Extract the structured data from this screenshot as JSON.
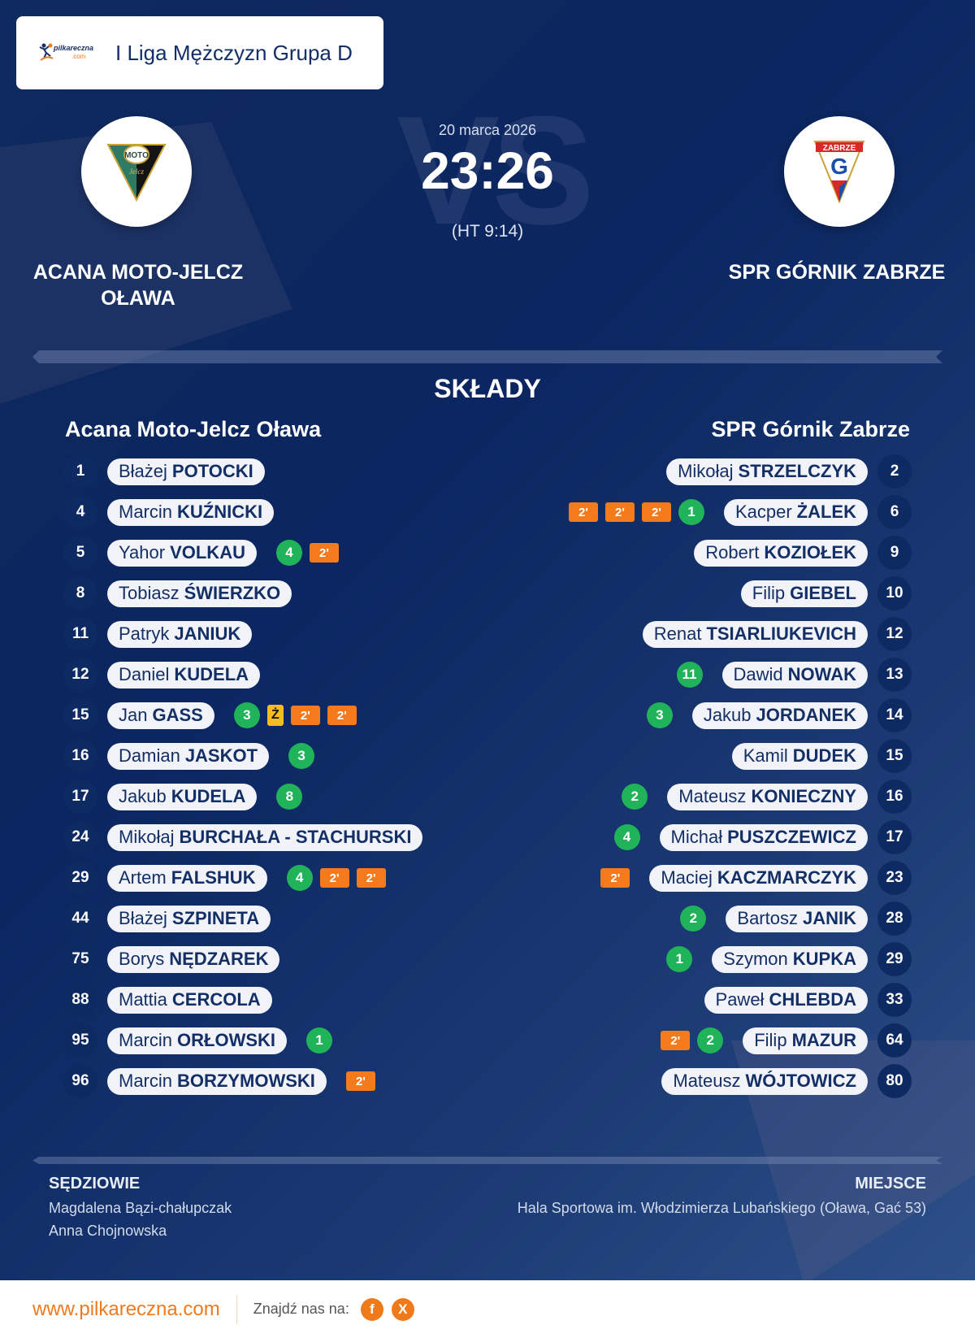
{
  "header": {
    "brand_name": "pilkareczna",
    "brand_tld": ".com",
    "league_title": "I Liga Mężczyzn Grupa D"
  },
  "match": {
    "date": "20 marca 2026",
    "score": "23:26",
    "halftime": "(HT 9:14)",
    "vs_watermark": "VS",
    "home_team_name": "ACANA MOTO-JELCZ OŁAWA",
    "away_team_name": "SPR GÓRNIK ZABRZE",
    "home_logo_text": "MOTO",
    "away_logo_text": "ZABRZE"
  },
  "lineups": {
    "section_title": "SKŁADY",
    "home": {
      "title": "Acana Moto-Jelcz Oława",
      "players": [
        {
          "number": "1",
          "first": "Błażej",
          "last": "POTOCKI",
          "goals": null,
          "yellow": false,
          "suspensions": 0
        },
        {
          "number": "4",
          "first": "Marcin",
          "last": "KUŹNICKI",
          "goals": null,
          "yellow": false,
          "suspensions": 0
        },
        {
          "number": "5",
          "first": "Yahor",
          "last": "VOLKAU",
          "goals": "4",
          "yellow": false,
          "suspensions": 1
        },
        {
          "number": "8",
          "first": "Tobiasz",
          "last": "ŚWIERZKO",
          "goals": null,
          "yellow": false,
          "suspensions": 0
        },
        {
          "number": "11",
          "first": "Patryk",
          "last": "JANIUK",
          "goals": null,
          "yellow": false,
          "suspensions": 0
        },
        {
          "number": "12",
          "first": "Daniel",
          "last": "KUDELA",
          "goals": null,
          "yellow": false,
          "suspensions": 0
        },
        {
          "number": "15",
          "first": "Jan",
          "last": "GASS",
          "goals": "3",
          "yellow": true,
          "suspensions": 2
        },
        {
          "number": "16",
          "first": "Damian",
          "last": "JASKOT",
          "goals": "3",
          "yellow": false,
          "suspensions": 0
        },
        {
          "number": "17",
          "first": "Jakub",
          "last": "KUDELA",
          "goals": "8",
          "yellow": false,
          "suspensions": 0
        },
        {
          "number": "24",
          "first": "Mikołaj",
          "last": "BURCHAŁA - STACHURSKI",
          "goals": null,
          "yellow": false,
          "suspensions": 0
        },
        {
          "number": "29",
          "first": "Artem",
          "last": "FALSHUK",
          "goals": "4",
          "yellow": false,
          "suspensions": 2
        },
        {
          "number": "44",
          "first": "Błażej",
          "last": "SZPINETA",
          "goals": null,
          "yellow": false,
          "suspensions": 0
        },
        {
          "number": "75",
          "first": "Borys",
          "last": "NĘDZAREK",
          "goals": null,
          "yellow": false,
          "suspensions": 0
        },
        {
          "number": "88",
          "first": "Mattia",
          "last": "CERCOLA",
          "goals": null,
          "yellow": false,
          "suspensions": 0
        },
        {
          "number": "95",
          "first": "Marcin",
          "last": "ORŁOWSKI",
          "goals": "1",
          "yellow": false,
          "suspensions": 0
        },
        {
          "number": "96",
          "first": "Marcin",
          "last": "BORZYMOWSKI",
          "goals": null,
          "yellow": false,
          "suspensions": 1
        }
      ]
    },
    "away": {
      "title": "SPR Górnik Zabrze",
      "players": [
        {
          "number": "2",
          "first": "Mikołaj",
          "last": "STRZELCZYK",
          "goals": null,
          "yellow": false,
          "suspensions": 0
        },
        {
          "number": "6",
          "first": "Kacper",
          "last": "ŻALEK",
          "goals": "1",
          "yellow": false,
          "suspensions": 3
        },
        {
          "number": "9",
          "first": "Robert",
          "last": "KOZIOŁEK",
          "goals": null,
          "yellow": false,
          "suspensions": 0
        },
        {
          "number": "10",
          "first": "Filip",
          "last": "GIEBEL",
          "goals": null,
          "yellow": false,
          "suspensions": 0
        },
        {
          "number": "12",
          "first": "Renat",
          "last": "TSIARLIUKEVICH",
          "goals": null,
          "yellow": false,
          "suspensions": 0
        },
        {
          "number": "13",
          "first": "Dawid",
          "last": "NOWAK",
          "goals": "11",
          "yellow": false,
          "suspensions": 0
        },
        {
          "number": "14",
          "first": "Jakub",
          "last": "JORDANEK",
          "goals": "3",
          "yellow": false,
          "suspensions": 0
        },
        {
          "number": "15",
          "first": "Kamil",
          "last": "DUDEK",
          "goals": null,
          "yellow": false,
          "suspensions": 0
        },
        {
          "number": "16",
          "first": "Mateusz",
          "last": "KONIECZNY",
          "goals": "2",
          "yellow": false,
          "suspensions": 0
        },
        {
          "number": "17",
          "first": "Michał",
          "last": "PUSZCZEWICZ",
          "goals": "4",
          "yellow": false,
          "suspensions": 0
        },
        {
          "number": "23",
          "first": "Maciej",
          "last": "KACZMARCZYK",
          "goals": null,
          "yellow": false,
          "suspensions": 1
        },
        {
          "number": "28",
          "first": "Bartosz",
          "last": "JANIK",
          "goals": "2",
          "yellow": false,
          "suspensions": 0
        },
        {
          "number": "29",
          "first": "Szymon",
          "last": "KUPKA",
          "goals": "1",
          "yellow": false,
          "suspensions": 0
        },
        {
          "number": "33",
          "first": "Paweł",
          "last": "CHLEBDA",
          "goals": null,
          "yellow": false,
          "suspensions": 0
        },
        {
          "number": "64",
          "first": "Filip",
          "last": "MAZUR",
          "goals": "2",
          "yellow": false,
          "suspensions": 1
        },
        {
          "number": "80",
          "first": "Mateusz",
          "last": "WÓJTOWICZ",
          "goals": null,
          "yellow": false,
          "suspensions": 0
        }
      ]
    },
    "suspension_label": "2'",
    "yellow_label": "Ż"
  },
  "officials": {
    "label": "SĘDZIOWIE",
    "referees": [
      "Magdalena Bązi-chałupczak",
      "Anna Chojnowska"
    ]
  },
  "venue": {
    "label": "MIEJSCE",
    "name": "Hala Sportowa im. Włodzimierza Lubańskiego (Oława, Gać 53)"
  },
  "footer": {
    "url": "www.pilkareczna.com",
    "find_us": "Znajdź nas na:",
    "social": [
      {
        "name": "facebook",
        "glyph": "f"
      },
      {
        "name": "x",
        "glyph": "X"
      }
    ]
  },
  "colors": {
    "background": "#0b2660",
    "accent_orange": "#f47a1c",
    "goals_green": "#20b35a",
    "yellow_card": "#f6bd20",
    "pill_bg": "#f1f3f9",
    "text_navy": "#132f66"
  }
}
